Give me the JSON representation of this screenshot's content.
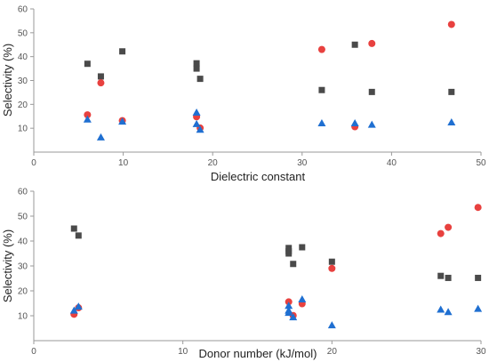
{
  "chart_data": [
    {
      "type": "scatter",
      "xlabel": "Dielectric constant",
      "ylabel": "Selectivity (%)",
      "xlim": [
        0,
        50
      ],
      "ylim": [
        0,
        60
      ],
      "xticks": [
        0,
        10,
        20,
        30,
        40,
        50
      ],
      "yticks": [
        10,
        20,
        30,
        40,
        50,
        60
      ],
      "grid": false,
      "legend": "none",
      "series": [
        {
          "marker": "square",
          "color": "#4a4a4a",
          "points": [
            [
              6.0,
              37.0
            ],
            [
              7.5,
              31.7
            ],
            [
              9.9,
              42.2
            ],
            [
              18.2,
              37.2
            ],
            [
              18.2,
              35.0
            ],
            [
              18.6,
              30.7
            ],
            [
              32.2,
              26.0
            ],
            [
              35.9,
              45.0
            ],
            [
              37.8,
              25.2
            ],
            [
              46.7,
              25.2
            ]
          ]
        },
        {
          "marker": "circle",
          "color": "#e8413f",
          "points": [
            [
              6.0,
              15.6
            ],
            [
              7.5,
              29.0
            ],
            [
              9.9,
              13.2
            ],
            [
              18.2,
              14.8
            ],
            [
              18.6,
              10.1
            ],
            [
              32.2,
              43.0
            ],
            [
              35.9,
              10.6
            ],
            [
              37.8,
              45.5
            ],
            [
              46.7,
              53.5
            ]
          ]
        },
        {
          "marker": "triangle",
          "color": "#1f6fd1",
          "points": [
            [
              6.0,
              13.7
            ],
            [
              7.5,
              6.2
            ],
            [
              9.9,
              12.8
            ],
            [
              18.2,
              16.6
            ],
            [
              18.2,
              11.8
            ],
            [
              18.6,
              9.4
            ],
            [
              32.2,
              12.1
            ],
            [
              35.9,
              12.1
            ],
            [
              37.8,
              11.5
            ],
            [
              46.7,
              12.5
            ]
          ]
        }
      ]
    },
    {
      "type": "scatter",
      "xlabel": "Donor number (kJ/mol)",
      "ylabel": "Selectivity (%)",
      "xlim": [
        0,
        30
      ],
      "ylim": [
        0,
        60
      ],
      "xticks": [
        0,
        10,
        20,
        30
      ],
      "yticks": [
        10,
        20,
        30,
        40,
        50,
        60
      ],
      "grid": false,
      "legend": "none",
      "series": [
        {
          "marker": "square",
          "color": "#4a4a4a",
          "points": [
            [
              2.7,
              45.0
            ],
            [
              3.0,
              42.2
            ],
            [
              17.1,
              37.2
            ],
            [
              17.1,
              35.9
            ],
            [
              17.1,
              35.0
            ],
            [
              17.4,
              30.8
            ],
            [
              18.0,
              37.5
            ],
            [
              20.0,
              31.7
            ],
            [
              27.3,
              26.0
            ],
            [
              27.8,
              25.2
            ],
            [
              29.8,
              25.2
            ]
          ]
        },
        {
          "marker": "circle",
          "color": "#e8413f",
          "points": [
            [
              2.7,
              10.6
            ],
            [
              3.0,
              13.2
            ],
            [
              17.1,
              15.6
            ],
            [
              17.4,
              10.1
            ],
            [
              18.0,
              14.8
            ],
            [
              20.0,
              29.0
            ],
            [
              27.3,
              43.0
            ],
            [
              27.8,
              45.5
            ],
            [
              29.8,
              53.5
            ]
          ]
        },
        {
          "marker": "triangle",
          "color": "#1f6fd1",
          "points": [
            [
              2.7,
              12.1
            ],
            [
              3.0,
              13.7
            ],
            [
              17.1,
              14.0
            ],
            [
              17.1,
              12.1
            ],
            [
              17.1,
              11.2
            ],
            [
              17.4,
              9.4
            ],
            [
              18.0,
              16.6
            ],
            [
              20.0,
              6.2
            ],
            [
              27.3,
              12.5
            ],
            [
              27.8,
              11.5
            ],
            [
              29.8,
              12.8
            ]
          ]
        }
      ]
    }
  ]
}
